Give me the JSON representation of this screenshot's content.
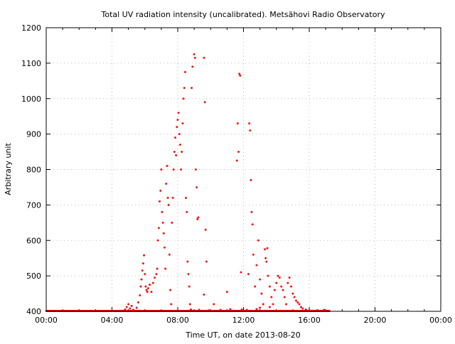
{
  "chart_data": {
    "type": "scatter",
    "title": "Total UV radiation intensity (uncalibrated). Metsähovi Radio Observatory",
    "xlabel": "Time UT, on date 2013-08-20",
    "ylabel": "Arbitrary unit",
    "xlim": [
      0,
      24
    ],
    "ylim": [
      400,
      1200
    ],
    "grid": true,
    "color": "#ff0000",
    "x_ticks": [
      {
        "value": 0,
        "label": "00:00"
      },
      {
        "value": 4,
        "label": "04:00"
      },
      {
        "value": 8,
        "label": "08:00"
      },
      {
        "value": 12,
        "label": "12:00"
      },
      {
        "value": 16,
        "label": "16:00"
      },
      {
        "value": 20,
        "label": "20:00"
      },
      {
        "value": 24,
        "label": "00:00"
      }
    ],
    "y_ticks": [
      {
        "value": 400,
        "label": "400"
      },
      {
        "value": 500,
        "label": "500"
      },
      {
        "value": 600,
        "label": "600"
      },
      {
        "value": 700,
        "label": "700"
      },
      {
        "value": 800,
        "label": "800"
      },
      {
        "value": 900,
        "label": "900"
      },
      {
        "value": 1000,
        "label": "1000"
      },
      {
        "value": 1100,
        "label": "1100"
      },
      {
        "value": 1200,
        "label": "1200"
      }
    ],
    "baseline": {
      "value": 400,
      "from_hour": 0,
      "to_hour": 17.2,
      "step_hour": 0.03
    },
    "points": [
      [
        4.8,
        405
      ],
      [
        4.9,
        412
      ],
      [
        5.0,
        420
      ],
      [
        5.1,
        408
      ],
      [
        5.2,
        415
      ],
      [
        5.3,
        404
      ],
      [
        5.5,
        410
      ],
      [
        5.6,
        425
      ],
      [
        5.7,
        445
      ],
      [
        5.75,
        470
      ],
      [
        5.8,
        490
      ],
      [
        5.85,
        515
      ],
      [
        5.9,
        535
      ],
      [
        5.95,
        558
      ],
      [
        6.0,
        505
      ],
      [
        6.05,
        470
      ],
      [
        6.1,
        460
      ],
      [
        6.15,
        455
      ],
      [
        6.2,
        465
      ],
      [
        6.3,
        475
      ],
      [
        6.4,
        455
      ],
      [
        6.5,
        480
      ],
      [
        6.6,
        495
      ],
      [
        6.7,
        505
      ],
      [
        6.75,
        520
      ],
      [
        6.8,
        600
      ],
      [
        6.85,
        635
      ],
      [
        6.9,
        710
      ],
      [
        6.95,
        740
      ],
      [
        7.0,
        800
      ],
      [
        7.05,
        680
      ],
      [
        7.1,
        650
      ],
      [
        7.15,
        620
      ],
      [
        7.2,
        580
      ],
      [
        7.25,
        520
      ],
      [
        7.3,
        760
      ],
      [
        7.35,
        810
      ],
      [
        7.4,
        720
      ],
      [
        7.45,
        700
      ],
      [
        7.5,
        560
      ],
      [
        7.55,
        460
      ],
      [
        7.6,
        420
      ],
      [
        7.65,
        650
      ],
      [
        7.7,
        720
      ],
      [
        7.75,
        800
      ],
      [
        7.8,
        850
      ],
      [
        7.85,
        890
      ],
      [
        7.9,
        840
      ],
      [
        7.95,
        920
      ],
      [
        8.0,
        940
      ],
      [
        8.05,
        960
      ],
      [
        8.1,
        900
      ],
      [
        8.15,
        870
      ],
      [
        8.2,
        800
      ],
      [
        8.25,
        850
      ],
      [
        8.3,
        930
      ],
      [
        8.35,
        1000
      ],
      [
        8.4,
        1030
      ],
      [
        8.45,
        1075
      ],
      [
        8.5,
        720
      ],
      [
        8.55,
        680
      ],
      [
        8.6,
        540
      ],
      [
        8.65,
        505
      ],
      [
        8.7,
        470
      ],
      [
        8.75,
        420
      ],
      [
        8.85,
        1030
      ],
      [
        8.9,
        1090
      ],
      [
        9.0,
        1125
      ],
      [
        9.05,
        1115
      ],
      [
        9.1,
        800
      ],
      [
        9.15,
        750
      ],
      [
        9.2,
        660
      ],
      [
        9.25,
        665
      ],
      [
        9.6,
        1115
      ],
      [
        9.65,
        990
      ],
      [
        9.7,
        630
      ],
      [
        9.75,
        540
      ],
      [
        9.6,
        447
      ],
      [
        10.2,
        420
      ],
      [
        11.0,
        455
      ],
      [
        11.6,
        825
      ],
      [
        11.65,
        930
      ],
      [
        11.7,
        850
      ],
      [
        11.75,
        1070
      ],
      [
        11.8,
        1065
      ],
      [
        11.85,
        510
      ],
      [
        12.3,
        505
      ],
      [
        12.35,
        930
      ],
      [
        12.4,
        910
      ],
      [
        12.45,
        770
      ],
      [
        12.5,
        680
      ],
      [
        12.55,
        645
      ],
      [
        12.6,
        560
      ],
      [
        12.7,
        470
      ],
      [
        12.8,
        530
      ],
      [
        12.9,
        600
      ],
      [
        13.0,
        490
      ],
      [
        13.1,
        450
      ],
      [
        13.2,
        420
      ],
      [
        13.3,
        575
      ],
      [
        13.35,
        550
      ],
      [
        13.4,
        540
      ],
      [
        13.45,
        578
      ],
      [
        13.5,
        500
      ],
      [
        13.6,
        470
      ],
      [
        13.7,
        440
      ],
      [
        13.8,
        420
      ],
      [
        13.9,
        460
      ],
      [
        14.0,
        480
      ],
      [
        14.1,
        500
      ],
      [
        14.2,
        495
      ],
      [
        14.3,
        470
      ],
      [
        14.4,
        460
      ],
      [
        14.5,
        440
      ],
      [
        14.6,
        420
      ],
      [
        14.7,
        480
      ],
      [
        14.8,
        495
      ],
      [
        14.9,
        470
      ],
      [
        15.0,
        450
      ],
      [
        15.1,
        440
      ],
      [
        15.2,
        430
      ],
      [
        15.3,
        425
      ],
      [
        15.4,
        420
      ],
      [
        15.5,
        412
      ],
      [
        15.6,
        408
      ],
      [
        15.8,
        405
      ],
      [
        16.0,
        403
      ],
      [
        16.5,
        403
      ],
      [
        16.9,
        404
      ],
      [
        8.8,
        405
      ],
      [
        9.3,
        404
      ],
      [
        9.9,
        403
      ],
      [
        10.6,
        404
      ],
      [
        11.2,
        406
      ],
      [
        11.9,
        405
      ],
      [
        12.2,
        404
      ],
      [
        12.8,
        406
      ],
      [
        13.0,
        410
      ],
      [
        13.6,
        412
      ]
    ]
  }
}
